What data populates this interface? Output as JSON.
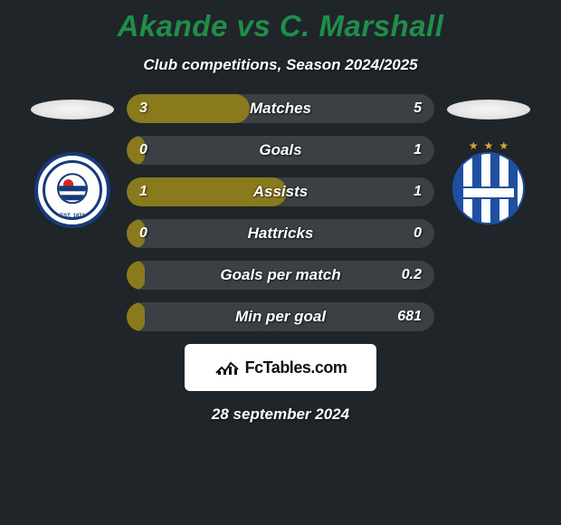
{
  "title": {
    "text": "Akande vs C. Marshall",
    "color": "#1f8e4a",
    "fontsize": 33
  },
  "subtitle": "Club competitions, Season 2024/2025",
  "background_color": "#1f2529",
  "bar_fill_color": "#8a7a1e",
  "bar_track_color": "#3a4044",
  "bars": [
    {
      "label": "Matches",
      "left": "3",
      "right": "5",
      "fill_pct": 40
    },
    {
      "label": "Goals",
      "left": "0",
      "right": "1",
      "fill_pct": 6
    },
    {
      "label": "Assists",
      "left": "1",
      "right": "1",
      "fill_pct": 52
    },
    {
      "label": "Hattricks",
      "left": "0",
      "right": "0",
      "fill_pct": 6
    },
    {
      "label": "Goals per match",
      "left": "",
      "right": "0.2",
      "fill_pct": 6
    },
    {
      "label": "Min per goal",
      "left": "",
      "right": "681",
      "fill_pct": 6
    }
  ],
  "club_left": {
    "name": "Reading",
    "ribbon": "EST. 1871"
  },
  "club_right": {
    "name": "Huddersfield",
    "stars": 3
  },
  "brand": "FcTables.com",
  "date": "28 september 2024"
}
